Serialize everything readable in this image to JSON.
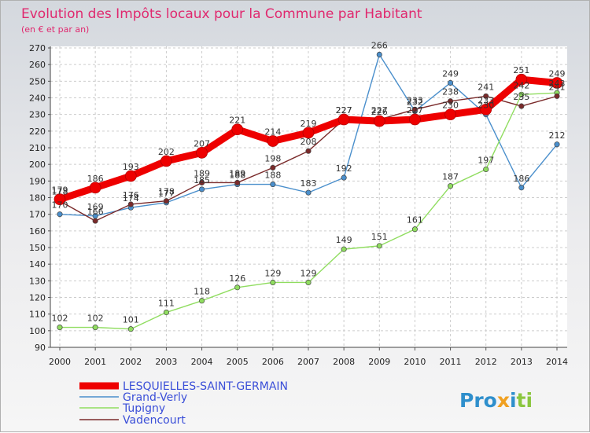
{
  "chart_data": {
    "type": "line",
    "title": "Evolution des Impôts locaux pour la Commune par Habitant",
    "subtitle": "(en € et par an)",
    "xlabel": "",
    "ylabel": "",
    "x": [
      "2000",
      "2001",
      "2002",
      "2003",
      "2004",
      "2005",
      "2006",
      "2007",
      "2008",
      "2009",
      "2010",
      "2011",
      "2012",
      "2013",
      "2014"
    ],
    "ylim": [
      90,
      270
    ],
    "yticks": [
      90,
      100,
      110,
      120,
      130,
      140,
      150,
      160,
      170,
      180,
      190,
      200,
      210,
      220,
      230,
      240,
      250,
      260,
      270
    ],
    "grid": true,
    "legend_position": "bottom-left",
    "series": [
      {
        "name": "LESQUIELLES-SAINT-GERMAIN",
        "color": "#ee0000",
        "values": [
          179,
          186,
          193,
          202,
          207,
          221,
          214,
          219,
          227,
          226,
          227,
          230,
          233,
          251,
          249
        ],
        "labels": [
          "179",
          "186",
          "193",
          "202",
          "207",
          "221",
          "214",
          "219",
          "227",
          "226",
          "227",
          "230",
          "233",
          "251",
          "249"
        ]
      },
      {
        "name": "Grand-Verly",
        "color": "#4a8fcc",
        "values": [
          170,
          169,
          174,
          177,
          185,
          188,
          188,
          183,
          192,
          266,
          232,
          249,
          230,
          186,
          212
        ],
        "labels": [
          "170",
          "169",
          "174",
          "177",
          "185",
          "188",
          "188",
          "183",
          "192",
          "266",
          "232",
          "249",
          "230",
          "186",
          "212"
        ]
      },
      {
        "name": "Tupigny",
        "color": "#90dd60",
        "values": [
          102,
          102,
          101,
          111,
          118,
          126,
          129,
          129,
          149,
          151,
          161,
          187,
          197,
          242,
          243
        ],
        "labels": [
          "102",
          "102",
          "101",
          "111",
          "118",
          "126",
          "129",
          "129",
          "149",
          "151",
          "161",
          "187",
          "197",
          "242",
          "243"
        ]
      },
      {
        "name": "Vadencourt",
        "color": "#7a2a2a",
        "values": [
          178,
          166,
          176,
          178,
          189,
          189,
          198,
          208,
          227,
          227,
          233,
          238,
          241,
          235,
          241
        ],
        "labels": [
          "178",
          "166",
          "176",
          "178",
          "189",
          "189",
          "198",
          "208",
          "227",
          "227",
          "233",
          "238",
          "241",
          "235",
          "241"
        ]
      }
    ],
    "watermark": "Proxiti"
  }
}
